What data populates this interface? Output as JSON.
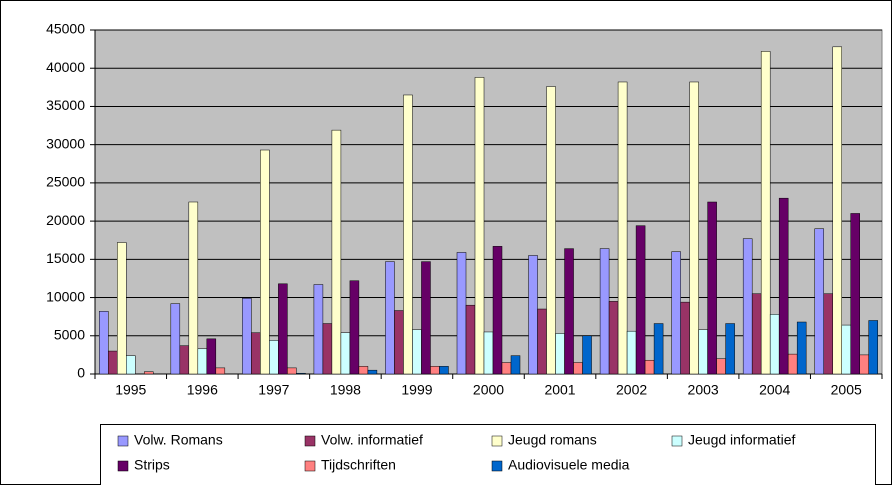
{
  "chart_data": {
    "type": "bar",
    "categories": [
      "1995",
      "1996",
      "1997",
      "1998",
      "1999",
      "2000",
      "2001",
      "2002",
      "2003",
      "2004",
      "2005"
    ],
    "series": [
      {
        "name": "Volw. Romans",
        "color": "#9999ff",
        "values": [
          8200,
          9200,
          9900,
          11700,
          14700,
          15900,
          15500,
          16400,
          16000,
          17700,
          19000
        ]
      },
      {
        "name": "Volw. informatief",
        "color": "#993366",
        "values": [
          3000,
          3700,
          5400,
          6600,
          8300,
          9000,
          8500,
          9500,
          9400,
          10500,
          10500
        ]
      },
      {
        "name": "Jeugd romans",
        "color": "#ffffcc",
        "values": [
          17200,
          22500,
          29300,
          31900,
          36500,
          38800,
          37600,
          38200,
          38200,
          42200,
          42800
        ]
      },
      {
        "name": "Jeugd informatief",
        "color": "#ccffff",
        "values": [
          2400,
          3300,
          4400,
          5400,
          5800,
          5500,
          5300,
          5600,
          5800,
          7800,
          6400
        ]
      },
      {
        "name": "Strips",
        "color": "#660066",
        "values": [
          0,
          4600,
          11800,
          12200,
          14700,
          16700,
          16400,
          19400,
          22500,
          23000,
          21000
        ]
      },
      {
        "name": "Tijdschriften",
        "color": "#ff8080",
        "values": [
          300,
          800,
          800,
          1000,
          1000,
          1500,
          1500,
          1800,
          2000,
          2600,
          2500
        ]
      },
      {
        "name": "Audiovisuele media",
        "color": "#0066cc",
        "values": [
          0,
          0,
          100,
          500,
          1000,
          2400,
          5000,
          6600,
          6600,
          6800,
          7000
        ]
      }
    ],
    "ylim": [
      0,
      45000
    ],
    "yticks": [
      0,
      5000,
      10000,
      15000,
      20000,
      25000,
      30000,
      35000,
      40000,
      45000
    ],
    "grid": true,
    "legend": "bottom"
  }
}
